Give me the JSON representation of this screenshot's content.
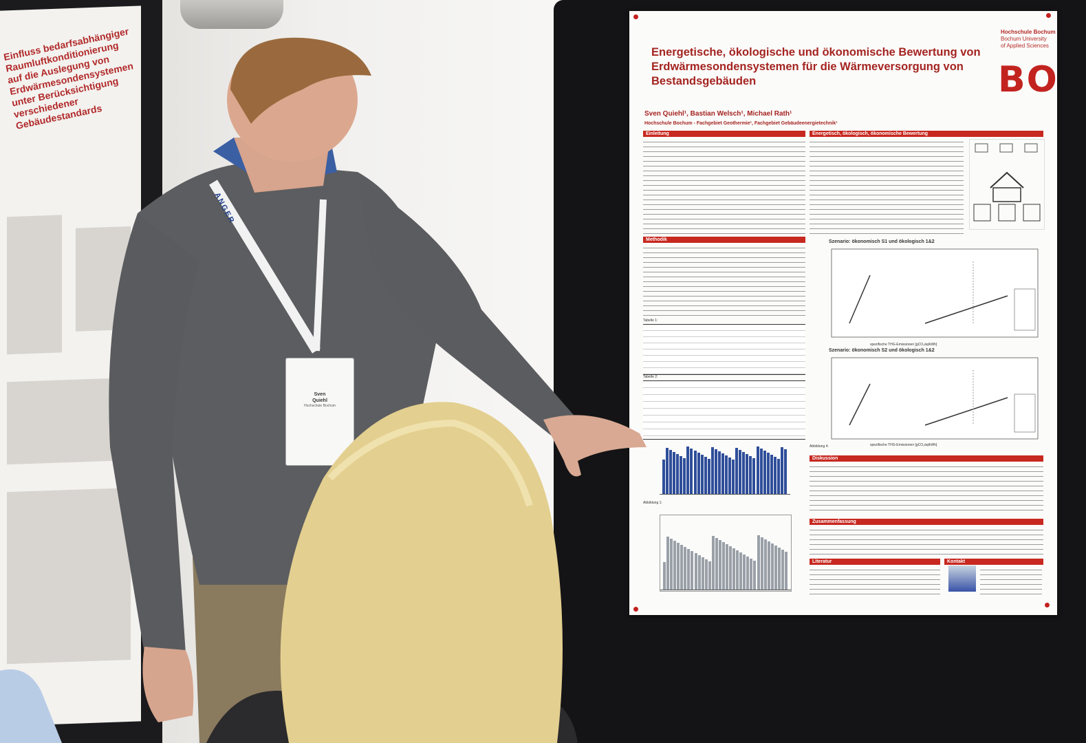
{
  "left_poster": {
    "title": "Einfluss bedarfsabhängiger Raumluftkonditionierung auf die Auslegung von Erdwärmesondensystemen unter Berücksichtigung verschiedener Gebäudestandards"
  },
  "lanyard": {
    "text": "ANGER"
  },
  "badge": {
    "name_line1": "Sven",
    "name_line2": "Quiehl",
    "institution": "Hochschule Bochum"
  },
  "poster": {
    "title": "Energetische, ökologische und ökonomische Bewertung von Erdwärmesondensystemen für die Wärmeversorgung von Bestandsgebäuden",
    "institution_line1": "Hochschule Bochum",
    "institution_line2": "Bochum University",
    "institution_line3": "of Applied Sciences",
    "logo": "BO",
    "authors": "Sven Quiehl¹, Bastian Welsch¹, Michael Rath¹",
    "affiliation": "Hochschule Bochum - Fachgebiet Geothermie¹, Fachgebiet Gebäudeenergietechnik¹",
    "sections": {
      "intro": "Einleitung",
      "eval": "Energetisch, ökologisch, ökonomische Bewertung",
      "method": "Methodik",
      "discussion": "Diskussion",
      "summary": "Zusammenfassung",
      "literature": "Literatur",
      "contact": "Kontakt"
    },
    "chart1_title": "Szenario: ökonomisch S1 und ökologisch 1&2",
    "chart2_title": "Szenario: ökonomisch S2 und ökologisch 1&2",
    "chart_xlabel": "spezifische THG-Emissionen [gCO₂äq/kWh]",
    "table1_caption": "Tabelle 1:",
    "table2_caption": "Tabelle 2:",
    "fig_caption_1": "Abbildung 1:",
    "fig_caption_4": "Abbildung 4:"
  },
  "colors": {
    "accent_red": "#c2231f",
    "bar_blue": "#2f4e9a"
  }
}
